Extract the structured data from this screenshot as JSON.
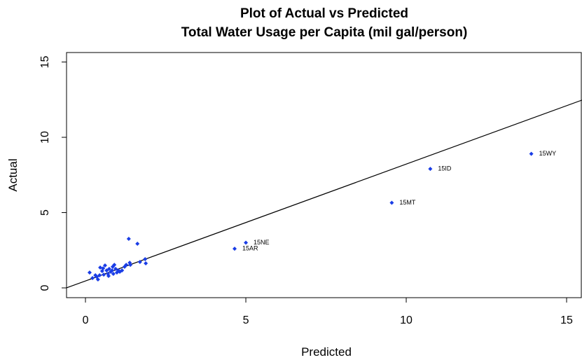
{
  "chart_data": {
    "type": "scatter",
    "title": [
      "Plot of Actual vs Predicted",
      "Total Water Usage per Capita (mil gal/person)"
    ],
    "x_label": "Predicted",
    "y_label": "Actual",
    "color": "#1a3de6",
    "xlim": [
      -0.59,
      15.48
    ],
    "ylim": [
      -0.65,
      15.63
    ],
    "xticks": [
      0,
      5,
      10,
      15
    ],
    "yticks": [
      0,
      5,
      10,
      15
    ],
    "line": {
      "intercept": 0.46,
      "slope": 0.776
    },
    "x": [
      13.9,
      10.75,
      9.55,
      5.0,
      4.65,
      0.13,
      0.22,
      0.35,
      0.39,
      0.46,
      0.52,
      0.57,
      0.61,
      0.66,
      0.7,
      0.74,
      0.79,
      0.83,
      0.87,
      0.9,
      0.94,
      0.98,
      1.03,
      1.07,
      1.14,
      1.22,
      1.27,
      1.35,
      1.38,
      1.4,
      1.62,
      1.7,
      1.86,
      1.88,
      0.31,
      0.44,
      0.55,
      0.72,
      0.85
    ],
    "y": [
      8.9,
      7.9,
      5.65,
      3.0,
      2.6,
      1.02,
      0.65,
      0.74,
      0.56,
      1.35,
      1.12,
      0.88,
      1.49,
      1.16,
      0.93,
      1.26,
      1.07,
      1.16,
      0.93,
      1.53,
      1.26,
      1.02,
      1.16,
      1.07,
      1.16,
      1.4,
      1.53,
      3.26,
      1.67,
      1.53,
      2.93,
      1.72,
      1.91,
      1.63,
      0.84,
      0.84,
      1.3,
      0.79,
      1.4
    ],
    "labels": [
      "15WY",
      "15ID",
      "15MT",
      "15NE",
      "15AR",
      null,
      null,
      null,
      null,
      null,
      null,
      null,
      null,
      null,
      null,
      null,
      null,
      null,
      null,
      null,
      null,
      null,
      null,
      null,
      null,
      null,
      null,
      null,
      null,
      null,
      null,
      null,
      null,
      null,
      null,
      null,
      null,
      null,
      null
    ]
  }
}
